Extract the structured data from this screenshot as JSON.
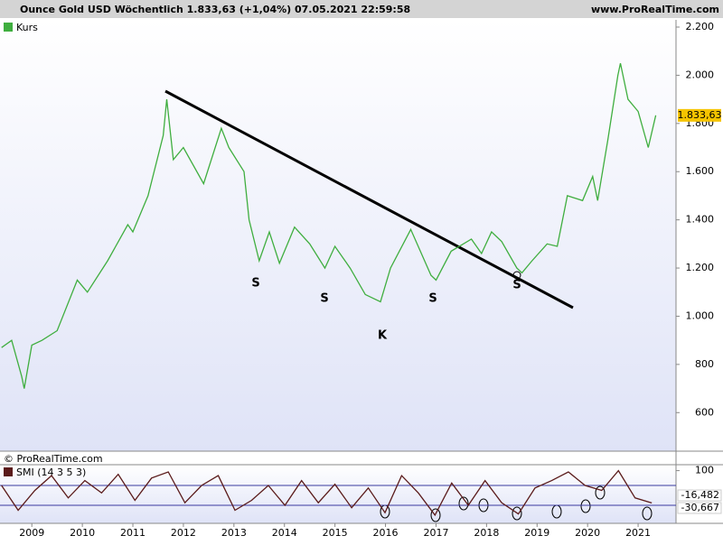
{
  "chart_data": [
    {
      "type": "line",
      "title": "Ounce Gold USD Wöchentlich 1.833,63 (+1,04%) 07.05.2021 22:59:58",
      "source": "www.ProRealTime.com",
      "watermark": "© ProRealTime.com",
      "annotations": [
        "S",
        "S",
        "S",
        "S",
        "K"
      ],
      "x": [
        2008.4,
        2008.6,
        2008.8,
        2008.85,
        2009.0,
        2009.2,
        2009.5,
        2009.9,
        2010.1,
        2010.5,
        2010.9,
        2011.0,
        2011.3,
        2011.6,
        2011.67,
        2011.8,
        2012.0,
        2012.4,
        2012.75,
        2012.9,
        2013.2,
        2013.3,
        2013.5,
        2013.7,
        2013.9,
        2014.2,
        2014.5,
        2014.8,
        2015.0,
        2015.3,
        2015.6,
        2015.9,
        2016.1,
        2016.5,
        2016.9,
        2017.0,
        2017.3,
        2017.7,
        2017.9,
        2018.1,
        2018.3,
        2018.6,
        2018.7,
        2018.9,
        2019.2,
        2019.4,
        2019.6,
        2019.9,
        2020.1,
        2020.2,
        2020.4,
        2020.6,
        2020.65,
        2020.8,
        2021.0,
        2021.2,
        2021.35
      ],
      "series": [
        {
          "name": "Kurs",
          "color": "#3fae3f",
          "values": [
            870,
            900,
            750,
            700,
            880,
            900,
            940,
            1150,
            1100,
            1230,
            1380,
            1350,
            1500,
            1750,
            1900,
            1650,
            1700,
            1550,
            1780,
            1700,
            1600,
            1400,
            1230,
            1350,
            1220,
            1370,
            1300,
            1200,
            1290,
            1200,
            1090,
            1060,
            1200,
            1360,
            1170,
            1150,
            1270,
            1320,
            1260,
            1350,
            1310,
            1200,
            1180,
            1230,
            1300,
            1290,
            1500,
            1480,
            1580,
            1480,
            1730,
            2000,
            2050,
            1900,
            1850,
            1700,
            1833.63
          ]
        }
      ],
      "last_price": {
        "value": 1833.63,
        "label": "1.833,63"
      },
      "xlim": [
        2008.37,
        2021.75
      ],
      "xticks": [
        2009,
        2010,
        2011,
        2012,
        2013,
        2014,
        2015,
        2016,
        2017,
        2018,
        2019,
        2020,
        2021
      ],
      "ylim": [
        440,
        2230
      ],
      "yticks": [
        {
          "value": 2200,
          "label": "2.200"
        },
        {
          "value": 2000,
          "label": "2.000"
        },
        {
          "value": 1800,
          "label": "1.800"
        },
        {
          "value": 1600,
          "label": "1.600"
        },
        {
          "value": 1400,
          "label": "1.400"
        },
        {
          "value": 1200,
          "label": "1.200"
        },
        {
          "value": 1000,
          "label": "1.000"
        },
        800,
        600
      ]
    },
    {
      "type": "line",
      "x": [
        2008.4,
        2008.73,
        2009.06,
        2009.39,
        2009.72,
        2010.05,
        2010.38,
        2010.71,
        2011.04,
        2011.37,
        2011.7,
        2012.03,
        2012.36,
        2012.69,
        2013.02,
        2013.35,
        2013.68,
        2014.01,
        2014.34,
        2014.67,
        2015.0,
        2015.33,
        2015.66,
        2015.99,
        2016.32,
        2016.65,
        2016.98,
        2017.31,
        2017.64,
        2017.97,
        2018.3,
        2018.63,
        2018.96,
        2019.29,
        2019.62,
        2019.95,
        2020.28,
        2020.61,
        2020.94,
        2021.27
      ],
      "series": [
        {
          "name": "SMI (14 3 5 3)",
          "color": "#5a1a1a",
          "values": [
            40,
            -60,
            20,
            80,
            -10,
            60,
            10,
            85,
            -20,
            70,
            95,
            -30,
            40,
            80,
            -60,
            -20,
            40,
            -40,
            60,
            -30,
            45,
            -50,
            30,
            -70,
            80,
            10,
            -80,
            50,
            -40,
            60,
            -30,
            -75,
            30,
            60,
            95,
            40,
            20,
            100,
            -10,
            -30.667
          ]
        }
      ],
      "tags": [
        {
          "value": -16.482,
          "label": "-16,482"
        },
        {
          "value": -30.667,
          "label": "-30,667"
        }
      ],
      "levels": [
        40,
        -40
      ],
      "xlim": [
        2008.37,
        2021.75
      ],
      "ylim": [
        -113,
        124
      ],
      "yticks": [
        100
      ]
    }
  ]
}
